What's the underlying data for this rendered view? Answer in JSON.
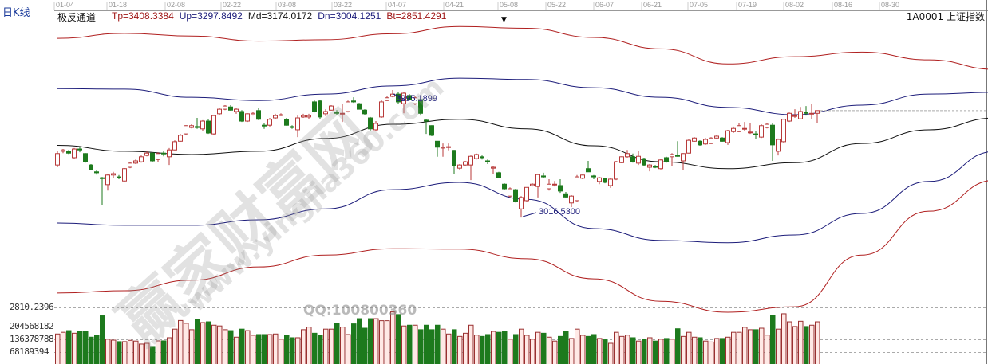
{
  "header": {
    "period": "日K线",
    "indicator_name": "极反通道",
    "indicators": [
      {
        "label": "Tp=3408.3384",
        "color": "#a01818"
      },
      {
        "label": "Up=3297.8492",
        "color": "#1c1c7a"
      },
      {
        "label": "Md=3174.0172",
        "color": "#111111"
      },
      {
        "label": "Dn=3004.1251",
        "color": "#1c1c7a"
      },
      {
        "label": "Bt=2851.4291",
        "color": "#a01818"
      }
    ],
    "symbol": "1A0001  上证指数",
    "marker_icon": "down-triangle-icon"
  },
  "watermark": {
    "brand": "赢家财富网",
    "site": "www.yingjia360.com",
    "qq": "QQ:100800360"
  },
  "volume_axis_labels": [
    "2810.2396",
    "204568182",
    "136378788",
    "68189394"
  ],
  "chart_data": {
    "type": "candlestick",
    "x_tick_labels": [
      "01-04",
      "01-18",
      "02-08",
      "02-22",
      "03-08",
      "03-22",
      "04-07",
      "04-21",
      "05-08",
      "05-22",
      "06-07",
      "06-21",
      "07-05",
      "07-19",
      "08-02",
      "08-16",
      "08-30"
    ],
    "annotations": {
      "high_label": "3295.1899",
      "low_label": "3016.5300"
    },
    "colors": {
      "up": "#b83a3a",
      "down": "#1d7a1d",
      "tp_bt": "#b02020",
      "up_dn": "#1c1c7a",
      "md": "#111111"
    },
    "ohlc_fields": [
      "open",
      "high",
      "low",
      "close"
    ],
    "candles": [
      [
        3131,
        3161,
        3126,
        3156
      ],
      [
        3161,
        3166,
        3157,
        3164
      ],
      [
        3161,
        3164,
        3155,
        3157
      ],
      [
        3147,
        3168,
        3145,
        3166
      ],
      [
        3166,
        3170,
        3159,
        3164
      ],
      [
        3156,
        3157,
        3136,
        3138
      ],
      [
        3131,
        3133,
        3119,
        3121
      ],
      [
        3116,
        3119,
        3110,
        3114
      ],
      [
        3103,
        3105,
        3044,
        3102
      ],
      [
        3088,
        3112,
        3075,
        3109
      ],
      [
        3109,
        3116,
        3103,
        3112
      ],
      [
        3105,
        3109,
        3100,
        3103
      ],
      [
        3096,
        3124,
        3095,
        3123
      ],
      [
        3126,
        3138,
        3124,
        3135
      ],
      [
        3135,
        3143,
        3133,
        3140
      ],
      [
        3138,
        3152,
        3136,
        3149
      ],
      [
        3152,
        3161,
        3150,
        3157
      ],
      [
        3157,
        3159,
        3138,
        3140
      ],
      [
        3143,
        3159,
        3138,
        3156
      ],
      [
        3157,
        3161,
        3150,
        3156
      ],
      [
        3149,
        3168,
        3131,
        3164
      ],
      [
        3164,
        3185,
        3163,
        3182
      ],
      [
        3183,
        3199,
        3182,
        3196
      ],
      [
        3199,
        3218,
        3197,
        3217
      ],
      [
        3213,
        3220,
        3211,
        3217
      ],
      [
        3215,
        3234,
        3210,
        3213
      ],
      [
        3210,
        3229,
        3206,
        3227
      ],
      [
        3227,
        3231,
        3199,
        3201
      ],
      [
        3199,
        3241,
        3197,
        3239
      ],
      [
        3243,
        3255,
        3241,
        3253
      ],
      [
        3253,
        3262,
        3251,
        3260
      ],
      [
        3258,
        3262,
        3250,
        3251
      ],
      [
        3248,
        3255,
        3243,
        3253
      ],
      [
        3248,
        3251,
        3225,
        3227
      ],
      [
        3227,
        3244,
        3225,
        3243
      ],
      [
        3241,
        3248,
        3239,
        3244
      ],
      [
        3250,
        3255,
        3229,
        3231
      ],
      [
        3218,
        3222,
        3210,
        3217
      ],
      [
        3218,
        3234,
        3215,
        3231
      ],
      [
        3234,
        3243,
        3232,
        3239
      ],
      [
        3241,
        3244,
        3238,
        3241
      ],
      [
        3231,
        3234,
        3217,
        3218
      ],
      [
        3215,
        3218,
        3210,
        3213
      ],
      [
        3208,
        3239,
        3192,
        3234
      ],
      [
        3236,
        3243,
        3234,
        3239
      ],
      [
        3236,
        3243,
        3232,
        3239
      ],
      [
        3269,
        3272,
        3246,
        3248
      ],
      [
        3271,
        3274,
        3232,
        3236
      ],
      [
        3243,
        3253,
        3238,
        3248
      ],
      [
        3251,
        3262,
        3250,
        3260
      ],
      [
        3246,
        3251,
        3241,
        3244
      ],
      [
        3243,
        3265,
        3225,
        3244
      ],
      [
        3248,
        3272,
        3246,
        3269
      ],
      [
        3271,
        3279,
        3267,
        3269
      ],
      [
        3265,
        3267,
        3253,
        3253
      ],
      [
        3251,
        3253,
        3241,
        3243
      ],
      [
        3234,
        3236,
        3206,
        3210
      ],
      [
        3208,
        3227,
        3206,
        3222
      ],
      [
        3236,
        3274,
        3234,
        3269
      ],
      [
        3272,
        3281,
        3271,
        3278
      ],
      [
        3281,
        3295,
        3279,
        3286
      ],
      [
        3286,
        3290,
        3265,
        3269
      ],
      [
        3265,
        3290,
        3244,
        3288
      ],
      [
        3283,
        3286,
        3272,
        3274
      ],
      [
        3265,
        3281,
        3262,
        3278
      ],
      [
        3274,
        3279,
        3239,
        3244
      ],
      [
        3229,
        3231,
        3199,
        3227
      ],
      [
        3217,
        3218,
        3194,
        3196
      ],
      [
        3183,
        3183,
        3149,
        3170
      ],
      [
        3168,
        3178,
        3149,
        3170
      ],
      [
        3170,
        3178,
        3163,
        3171
      ],
      [
        3163,
        3164,
        3112,
        3129
      ],
      [
        3124,
        3133,
        3121,
        3131
      ],
      [
        3131,
        3140,
        3129,
        3138
      ],
      [
        3131,
        3152,
        3098,
        3150
      ],
      [
        3145,
        3156,
        3143,
        3154
      ],
      [
        3149,
        3152,
        3143,
        3147
      ],
      [
        3140,
        3143,
        3133,
        3138
      ],
      [
        3124,
        3129,
        3112,
        3126
      ],
      [
        3114,
        3116,
        3103,
        3103
      ],
      [
        3089,
        3091,
        3077,
        3079
      ],
      [
        3063,
        3082,
        3060,
        3079
      ],
      [
        3077,
        3079,
        3049,
        3051
      ],
      [
        3035,
        3063,
        3016,
        3060
      ],
      [
        3053,
        3082,
        3051,
        3082
      ],
      [
        3086,
        3091,
        3084,
        3089
      ],
      [
        3084,
        3112,
        3060,
        3110
      ],
      [
        3107,
        3114,
        3102,
        3105
      ],
      [
        3079,
        3100,
        3075,
        3089
      ],
      [
        3088,
        3096,
        3084,
        3089
      ],
      [
        3086,
        3100,
        3070,
        3074
      ],
      [
        3068,
        3072,
        3060,
        3061
      ],
      [
        3048,
        3065,
        3039,
        3063
      ],
      [
        3053,
        3109,
        3051,
        3105
      ],
      [
        3102,
        3110,
        3100,
        3109
      ],
      [
        3123,
        3140,
        3116,
        3116
      ],
      [
        3107,
        3109,
        3100,
        3105
      ],
      [
        3095,
        3105,
        3089,
        3103
      ],
      [
        3102,
        3103,
        3091,
        3093
      ],
      [
        3086,
        3102,
        3081,
        3100
      ],
      [
        3100,
        3140,
        3098,
        3138
      ],
      [
        3136,
        3150,
        3135,
        3149
      ],
      [
        3149,
        3164,
        3147,
        3156
      ],
      [
        3149,
        3156,
        3136,
        3138
      ],
      [
        3135,
        3161,
        3131,
        3150
      ],
      [
        3145,
        3147,
        3129,
        3131
      ],
      [
        3126,
        3133,
        3117,
        3131
      ],
      [
        3128,
        3131,
        3124,
        3126
      ],
      [
        3123,
        3145,
        3121,
        3142
      ],
      [
        3147,
        3149,
        3136,
        3138
      ],
      [
        3149,
        3157,
        3129,
        3154
      ],
      [
        3152,
        3183,
        3149,
        3150
      ],
      [
        3140,
        3157,
        3119,
        3156
      ],
      [
        3157,
        3187,
        3156,
        3185
      ],
      [
        3183,
        3192,
        3182,
        3190
      ],
      [
        3183,
        3185,
        3173,
        3175
      ],
      [
        3177,
        3190,
        3175,
        3187
      ],
      [
        3178,
        3192,
        3177,
        3190
      ],
      [
        3190,
        3196,
        3189,
        3194
      ],
      [
        3190,
        3192,
        3182,
        3183
      ],
      [
        3180,
        3208,
        3175,
        3206
      ],
      [
        3204,
        3215,
        3201,
        3211
      ],
      [
        3204,
        3222,
        3203,
        3217
      ],
      [
        3210,
        3225,
        3206,
        3211
      ],
      [
        3203,
        3222,
        3199,
        3203
      ],
      [
        3199,
        3206,
        3187,
        3197
      ],
      [
        3192,
        3220,
        3190,
        3217
      ],
      [
        3213,
        3222,
        3211,
        3220
      ],
      [
        3218,
        3222,
        3140,
        3175
      ],
      [
        3161,
        3189,
        3152,
        3187
      ],
      [
        3182,
        3232,
        3180,
        3231
      ],
      [
        3227,
        3246,
        3225,
        3244
      ],
      [
        3238,
        3253,
        3234,
        3239
      ],
      [
        3232,
        3258,
        3231,
        3248
      ],
      [
        3246,
        3260,
        3239,
        3244
      ],
      [
        3243,
        3264,
        3231,
        3244
      ],
      [
        3244,
        3250,
        3222,
        3250
      ]
    ],
    "volume_millions": [
      165,
      174,
      183,
      169,
      179,
      179,
      148,
      158,
      262,
      137,
      132,
      124,
      124,
      131,
      127,
      111,
      115,
      94,
      128,
      128,
      145,
      191,
      237,
      222,
      188,
      243,
      226,
      230,
      212,
      208,
      188,
      183,
      148,
      191,
      183,
      158,
      162,
      162,
      162,
      165,
      137,
      159,
      145,
      145,
      188,
      202,
      169,
      159,
      191,
      191,
      222,
      202,
      162,
      219,
      247,
      196,
      247,
      247,
      236,
      236,
      283,
      269,
      208,
      212,
      212,
      188,
      212,
      188,
      212,
      191,
      165,
      188,
      152,
      169,
      212,
      159,
      152,
      162,
      179,
      174,
      179,
      137,
      162,
      191,
      158,
      137,
      174,
      169,
      148,
      127,
      152,
      179,
      141,
      191,
      158,
      152,
      162,
      141,
      134,
      115,
      174,
      152,
      159,
      145,
      127,
      137,
      145,
      127,
      137,
      141,
      137,
      193,
      152,
      174,
      148,
      145,
      127,
      122,
      141,
      141,
      148,
      174,
      174,
      201,
      188,
      188,
      196,
      159,
      264,
      191,
      273,
      230,
      205,
      233,
      205,
      212,
      230
    ],
    "channel_sample_step_days": 12,
    "channels": [
      {
        "name": "Tp",
        "role": "tp_bt",
        "values": [
          3408,
          3419,
          3413,
          3402,
          3405,
          3418,
          3434,
          3430,
          3410,
          3385,
          3352,
          3368,
          3378,
          3361,
          3340
        ]
      },
      {
        "name": "Up",
        "role": "up_dn",
        "values": [
          3298,
          3297,
          3279,
          3272,
          3286,
          3304,
          3321,
          3318,
          3300,
          3279,
          3257,
          3241,
          3262,
          3286,
          3290
        ]
      },
      {
        "name": "Md",
        "role": "md",
        "values": [
          3174,
          3161,
          3154,
          3161,
          3189,
          3220,
          3231,
          3210,
          3173,
          3138,
          3123,
          3136,
          3178,
          3208,
          3234
        ]
      },
      {
        "name": "Dn",
        "role": "up_dn",
        "values": [
          3004,
          2999,
          2999,
          3011,
          3035,
          3077,
          3093,
          3056,
          2992,
          2966,
          2961,
          2978,
          3025,
          3095,
          3161
        ]
      },
      {
        "name": "Bt",
        "role": "tp_bt",
        "values": [
          2851,
          2856,
          2879,
          2908,
          2934,
          2948,
          2947,
          2926,
          2882,
          2833,
          2809,
          2821,
          2934,
          3030,
          3098
        ]
      }
    ]
  }
}
